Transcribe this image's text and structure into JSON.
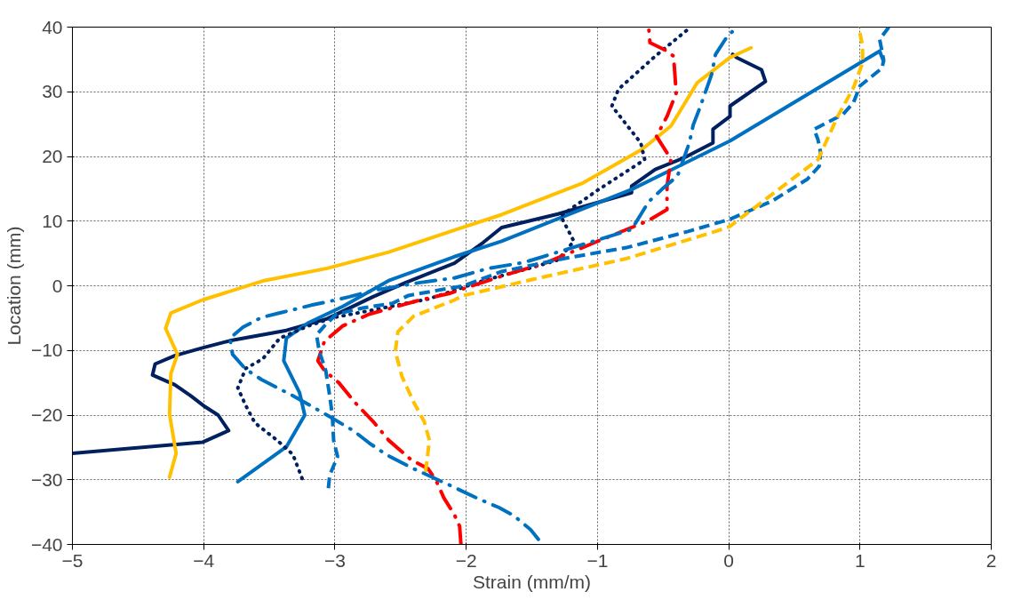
{
  "chart_data": {
    "type": "line",
    "xlabel": "Strain (mm/m)",
    "ylabel": "Location (mm)",
    "xlim": [
      -5,
      2
    ],
    "ylim": [
      -40,
      40
    ],
    "xticks": [
      -5,
      -4,
      -3,
      -2,
      -1,
      0,
      1,
      2
    ],
    "yticks": [
      -40,
      -30,
      -20,
      -10,
      0,
      10,
      20,
      30,
      40
    ],
    "grid": true,
    "marker": "none",
    "series": [
      {
        "color": "#002060",
        "line_style": "solid",
        "x": [
          -5.0,
          -4.01,
          -3.81,
          -3.89,
          -3.99,
          -4.1,
          -4.22,
          -4.39,
          -4.37,
          -4.22,
          -4.01,
          -3.8,
          -3.37,
          -3.06,
          -2.71,
          -2.46,
          -2.09,
          -1.87,
          -1.73,
          -1.3,
          -0.74,
          -0.74,
          -0.56,
          -0.34,
          -0.12,
          -0.12,
          0.01,
          0.01,
          0.28,
          0.25,
          0.06,
          0.03
        ],
        "values": [
          -25.9,
          -24.2,
          -22.4,
          -20.0,
          -18.7,
          -17.0,
          -15.3,
          -13.8,
          -12.1,
          -10.8,
          -9.6,
          -8.5,
          -6.9,
          -5.1,
          -1.7,
          0.5,
          3.5,
          6.7,
          9.0,
          11.1,
          14.4,
          15.4,
          18.0,
          19.8,
          22.1,
          24.2,
          26.2,
          27.8,
          31.6,
          33.4,
          35.3,
          35.8
        ]
      },
      {
        "color": "#0070c0",
        "line_style": "solid",
        "x": [
          -3.74,
          -3.37,
          -3.23,
          -3.27,
          -3.39,
          -3.37,
          -3.2,
          -2.94,
          -2.59,
          -2.09,
          -1.73,
          -0.74,
          0.01,
          1.15,
          1.18
        ],
        "values": [
          -30.3,
          -24.9,
          -20.0,
          -16.5,
          -11.6,
          -8.1,
          -5.7,
          -3.2,
          0.8,
          4.5,
          6.9,
          14.9,
          22.4,
          36.3,
          34.7
        ]
      },
      {
        "color": "#ffc000",
        "line_style": "solid",
        "x": [
          -4.26,
          -4.21,
          -4.26,
          -4.25,
          -4.2,
          -4.29,
          -4.25,
          -4.01,
          -3.54,
          -3.06,
          -2.59,
          -2.09,
          -1.73,
          -1.11,
          -0.66,
          -0.44,
          -0.24,
          0.01,
          0.17
        ],
        "values": [
          -29.6,
          -25.9,
          -19.9,
          -13.6,
          -10.6,
          -6.6,
          -4.2,
          -2.2,
          0.8,
          2.7,
          5.2,
          8.6,
          11.0,
          15.9,
          21.1,
          24.7,
          31.4,
          35.3,
          36.8
        ]
      },
      {
        "color": "#002060",
        "line_style": "dotted",
        "x": [
          -3.25,
          -3.32,
          -3.44,
          -3.61,
          -3.68,
          -3.74,
          -3.68,
          -3.55,
          -3.42,
          -3.2,
          -3.01,
          -2.7,
          -2.28,
          -1.87,
          -1.52,
          -1.3,
          -1.18,
          -1.28,
          -0.99,
          -0.64,
          -0.67,
          -0.89,
          -0.84,
          -0.56,
          -0.29
        ],
        "values": [
          -29.8,
          -26.1,
          -23.9,
          -21.2,
          -18.5,
          -15.8,
          -12.8,
          -11.3,
          -8.1,
          -6.2,
          -4.9,
          -3.7,
          -2.0,
          0.8,
          2.7,
          4.0,
          6.9,
          10.8,
          14.9,
          19.5,
          22.1,
          27.8,
          30.4,
          35.5,
          40
        ]
      },
      {
        "color": "#ff0000",
        "line_style": "dashdot",
        "x": [
          -2.04,
          -2.05,
          -2.09,
          -2.17,
          -2.23,
          -2.29,
          -2.42,
          -2.59,
          -2.7,
          -2.85,
          -2.97,
          -3.08,
          -3.13,
          -3.08,
          -2.94,
          -2.74,
          -2.35,
          -2.13,
          -1.73,
          -1.4,
          -1.02,
          -0.62,
          -0.47,
          -0.47,
          -0.44,
          -0.55,
          -0.47,
          -0.4,
          -0.42,
          -0.47,
          -0.6,
          -0.61
        ],
        "values": [
          -40,
          -37.2,
          -35.4,
          -32.8,
          -30.1,
          -28.3,
          -26.9,
          -23.9,
          -21.2,
          -18.0,
          -15.0,
          -13.1,
          -11.6,
          -8.6,
          -6.2,
          -4.4,
          -2.2,
          -1.2,
          1.5,
          3.5,
          6.7,
          10.0,
          11.8,
          15.4,
          19.6,
          23.1,
          26.2,
          29.8,
          35.5,
          36.3,
          37.6,
          40
        ]
      },
      {
        "color": "#0070c0",
        "line_style": "dashdot",
        "x": [
          -1.45,
          -1.51,
          -1.64,
          -1.75,
          -1.9,
          -2.13,
          -2.42,
          -2.61,
          -2.74,
          -2.86,
          -3.06,
          -3.32,
          -3.56,
          -3.68,
          -3.78,
          -3.8,
          -3.7,
          -3.56,
          -3.42,
          -3.18,
          -3.04,
          -2.89,
          -2.7,
          -2.35,
          -2.09,
          -1.83,
          -1.56,
          -0.74,
          -0.61,
          -0.51,
          -0.39,
          -0.3,
          -0.27,
          -0.22,
          -0.13,
          -0.1,
          -0.02,
          0.06
        ],
        "values": [
          -39.2,
          -37.7,
          -35.5,
          -34.3,
          -33.0,
          -30.8,
          -28.1,
          -26.1,
          -24.3,
          -22.4,
          -20.0,
          -17.0,
          -14.5,
          -12.9,
          -10.6,
          -8.1,
          -6.4,
          -4.9,
          -4.2,
          -3.0,
          -2.4,
          -1.7,
          -0.7,
          0.5,
          1.2,
          2.7,
          3.6,
          8.7,
          13.0,
          14.9,
          17.0,
          22.1,
          24.9,
          27.5,
          32.7,
          35.8,
          38.3,
          40
        ]
      },
      {
        "color": "#0070c0",
        "line_style": "dashed",
        "x": [
          -3.05,
          -3.04,
          -2.98,
          -3.01,
          -3.02,
          -3.04,
          -3.07,
          -3.12,
          -3.14,
          -3.08,
          -2.99,
          -2.78,
          -2.56,
          -2.44,
          -2.02,
          -1.73,
          -1.26,
          -0.78,
          -0.31,
          0.01,
          0.33,
          0.6,
          0.69,
          0.7,
          0.68,
          0.65,
          0.87,
          0.95,
          1.0,
          1.17,
          1.18,
          1.15,
          1.22
        ],
        "values": [
          -31.3,
          -29.3,
          -26.4,
          -23.9,
          -20.0,
          -17.0,
          -13.1,
          -10.1,
          -7.6,
          -6.2,
          -4.4,
          -3.4,
          -2.7,
          -1.5,
          0.0,
          2.2,
          4.2,
          5.9,
          8.4,
          10.3,
          13.1,
          16.5,
          18.5,
          20.6,
          22.6,
          24.2,
          26.5,
          28.3,
          30.9,
          33.7,
          35.0,
          38.1,
          40
        ]
      },
      {
        "color": "#ffc000",
        "line_style": "dashed",
        "x": [
          -2.31,
          -2.28,
          -2.32,
          -2.4,
          -2.49,
          -2.54,
          -2.52,
          -2.4,
          -2.09,
          -2.02,
          -1.49,
          -0.78,
          -0.07,
          0.01,
          0.38,
          0.68,
          0.83,
          0.95,
          1.02,
          1.02,
          0.99
        ],
        "values": [
          -28.8,
          -23.9,
          -21.0,
          -18.0,
          -14.0,
          -10.1,
          -7.1,
          -4.7,
          -2.2,
          -1.5,
          1.0,
          4.2,
          8.6,
          9.2,
          14.9,
          19.5,
          26.2,
          30.6,
          34.5,
          37.1,
          40
        ]
      }
    ]
  }
}
